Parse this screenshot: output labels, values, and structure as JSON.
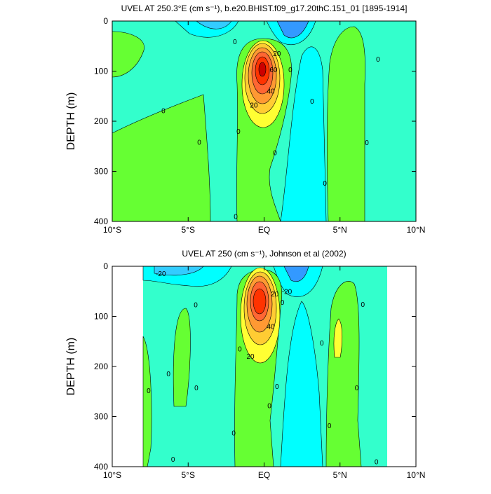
{
  "chart_data": [
    {
      "type": "contour",
      "title": "UVEL AT 250.3°E (cm s⁻¹), b.e20.BHIST.f09_g17.20thC.151_01 [1895-1914]",
      "ylabel": "DEPTH (m)",
      "xlim": [
        -10,
        10
      ],
      "ylim": [
        0,
        400
      ],
      "y_reversed": true,
      "xticks": [
        {
          "value": -10,
          "label": "10°S"
        },
        {
          "value": -5,
          "label": "5°S"
        },
        {
          "value": 0,
          "label": "EQ"
        },
        {
          "value": 5,
          "label": "5°N"
        },
        {
          "value": 10,
          "label": "10°N"
        }
      ],
      "yticks": [
        0,
        100,
        200,
        300,
        400
      ],
      "contour_labels": [
        {
          "x": -6.63,
          "y": 179,
          "value": 0
        },
        {
          "x": -4.27,
          "y": 242,
          "value": 0
        },
        {
          "x": -1.92,
          "y": 41,
          "value": 0
        },
        {
          "x": -1.69,
          "y": 220,
          "value": 0
        },
        {
          "x": -1.87,
          "y": 390,
          "value": 0
        },
        {
          "x": 0.72,
          "y": 263,
          "value": 0
        },
        {
          "x": 1.73,
          "y": 97,
          "value": 0
        },
        {
          "x": 3.16,
          "y": 160,
          "value": 0
        },
        {
          "x": 4.0,
          "y": 324,
          "value": 0
        },
        {
          "x": 6.77,
          "y": 243,
          "value": 0
        },
        {
          "x": 7.5,
          "y": 76,
          "value": 0
        },
        {
          "x": 0.85,
          "y": 65,
          "value": 20
        },
        {
          "x": 0.62,
          "y": 97,
          "value": 60
        },
        {
          "x": 0.44,
          "y": 140,
          "value": 40
        },
        {
          "x": -0.67,
          "y": 168,
          "value": 20
        }
      ]
    },
    {
      "type": "contour",
      "title": "UVEL AT 250 (cm s⁻¹), Johnson et al (2002)",
      "ylabel": "DEPTH (m)",
      "xlim": [
        -10,
        10
      ],
      "ylim": [
        0,
        400
      ],
      "y_reversed": true,
      "xticks": [
        {
          "value": -10,
          "label": "10°S"
        },
        {
          "value": -5,
          "label": "5°S"
        },
        {
          "value": 0,
          "label": "EQ"
        },
        {
          "value": 5,
          "label": "5°N"
        },
        {
          "value": 10,
          "label": "10°N"
        }
      ],
      "yticks": [
        0,
        100,
        200,
        300,
        400
      ],
      "contour_labels": [
        {
          "x": -7.6,
          "y": 248,
          "value": 0
        },
        {
          "x": -6.3,
          "y": 215,
          "value": 0
        },
        {
          "x": -6.0,
          "y": 385,
          "value": 0
        },
        {
          "x": -4.5,
          "y": 77,
          "value": 0
        },
        {
          "x": -4.46,
          "y": 243,
          "value": 0
        },
        {
          "x": -1.6,
          "y": 165,
          "value": 0
        },
        {
          "x": -2.0,
          "y": 333,
          "value": 0
        },
        {
          "x": 0.85,
          "y": 240,
          "value": 0
        },
        {
          "x": 1.2,
          "y": 72,
          "value": 0
        },
        {
          "x": 0.35,
          "y": 278,
          "value": 0
        },
        {
          "x": 3.8,
          "y": 153,
          "value": 0
        },
        {
          "x": 4.3,
          "y": 318,
          "value": 0
        },
        {
          "x": 6.1,
          "y": 243,
          "value": 0
        },
        {
          "x": 6.5,
          "y": 76,
          "value": 0
        },
        {
          "x": 7.4,
          "y": 390,
          "value": 0
        },
        {
          "x": -6.8,
          "y": 15,
          "value": -20
        },
        {
          "x": 1.5,
          "y": 50,
          "value": -20
        },
        {
          "x": -0.9,
          "y": 180,
          "value": 20
        },
        {
          "x": 0.44,
          "y": 120,
          "value": 40
        },
        {
          "x": 0.7,
          "y": 55,
          "value": 20
        }
      ]
    }
  ]
}
